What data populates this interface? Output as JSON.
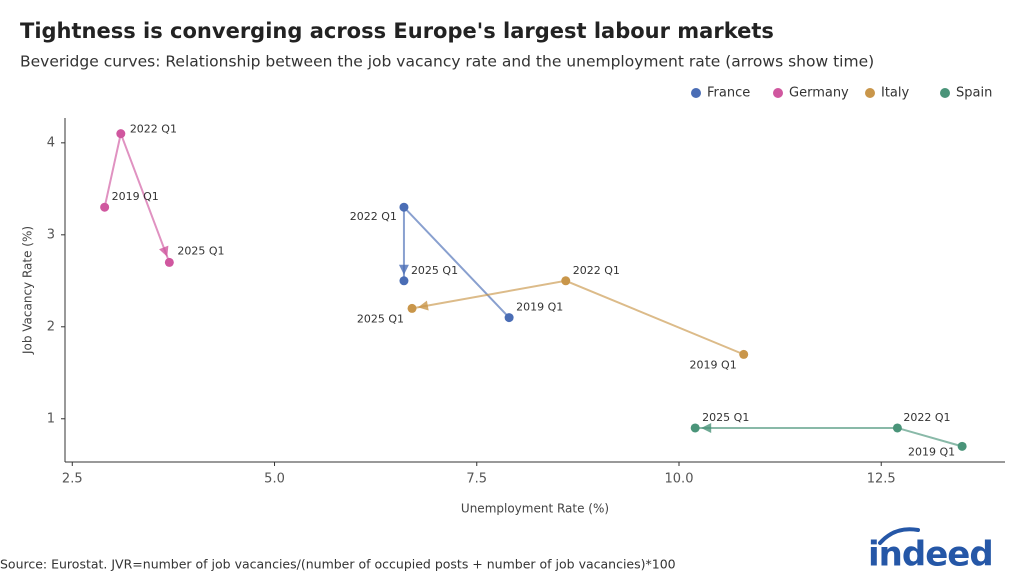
{
  "chart_data": {
    "type": "connected-scatter",
    "title": "Tightness is converging across Europe's largest labour markets",
    "subtitle": "Beveridge curves: Relationship between the job vacancy rate and the unemployment rate (arrows show time)",
    "x_label": "Unemployment Rate (%)",
    "y_label": "Job Vacancy Rate (%)",
    "source": "Source: Eurostat. JVR=number of job vacancies/(number of occupied posts + number of job vacancies)*100",
    "logo": "indeed",
    "xlim": [
      2.41,
      14.03
    ],
    "ylim": [
      0.53,
      4.27
    ],
    "xticks": [
      2.5,
      {
        "value": 5,
        "label": "5.0"
      },
      7.5,
      {
        "value": 10,
        "label": "10.0"
      },
      12.5
    ],
    "yticks": [
      1,
      2,
      3,
      4
    ],
    "grid": false,
    "legend": "top-right",
    "series": [
      {
        "name": "France",
        "color": "#4a6db5",
        "labels": [
          "2019 Q1",
          "2022 Q1",
          "2025 Q1"
        ],
        "x": [
          7.9,
          6.6,
          6.6
        ],
        "values": [
          2.1,
          3.3,
          2.5
        ]
      },
      {
        "name": "Germany",
        "color": "#d0579f",
        "labels": [
          "2019 Q1",
          "2022 Q1",
          "2025 Q1"
        ],
        "x": [
          2.9,
          3.1,
          3.7
        ],
        "values": [
          3.3,
          4.1,
          2.7
        ]
      },
      {
        "name": "Italy",
        "color": "#c9964a",
        "labels": [
          "2019 Q1",
          "2022 Q1",
          "2025 Q1"
        ],
        "x": [
          10.8,
          8.6,
          6.7
        ],
        "values": [
          1.7,
          2.5,
          2.2
        ]
      },
      {
        "name": "Spain",
        "color": "#4a9479",
        "labels": [
          "2019 Q1",
          "2022 Q1",
          "2025 Q1"
        ],
        "x": [
          13.5,
          12.7,
          10.2
        ],
        "values": [
          0.7,
          0.9,
          0.9
        ]
      }
    ]
  }
}
